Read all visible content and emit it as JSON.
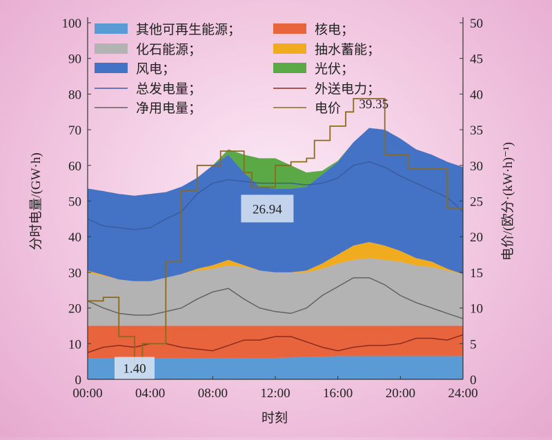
{
  "chart_data": {
    "type": "area",
    "x_label": "时刻",
    "y_left_label": "分时电量/(GW·h)",
    "y_right_label": "电价/(欧分·(kW·h)⁻¹)",
    "x_ticks": [
      "00:00",
      "04:00",
      "08:00",
      "12:00",
      "16:00",
      "20:00",
      "24:00"
    ],
    "y_left_ticks": [
      "0",
      "10",
      "20",
      "30",
      "40",
      "50",
      "60",
      "70",
      "80",
      "90",
      "100"
    ],
    "y_right_ticks": [
      "0",
      "5",
      "10",
      "15",
      "20",
      "25",
      "30",
      "35",
      "40",
      "45",
      "50"
    ],
    "y_left_range": [
      0,
      100
    ],
    "y_right_range": [
      0,
      50
    ],
    "x_range_hours": [
      0,
      24
    ],
    "grid": false,
    "legend_position": "top",
    "stacked_areas": [
      {
        "name": "其他可再生能源；",
        "color": "#5b9bd5",
        "x": [
          0,
          4,
          8,
          12,
          16,
          20,
          24
        ],
        "values": [
          6,
          6,
          6,
          6,
          6.5,
          6.5,
          6.5
        ]
      },
      {
        "name": "核电；",
        "color": "#e8643c",
        "x": [
          0,
          4,
          8,
          12,
          16,
          20,
          24
        ],
        "values": [
          9,
          9,
          9,
          9,
          8.5,
          8.5,
          8.5
        ]
      },
      {
        "name": "化石能源；",
        "color": "#b3b3b3",
        "x": [
          0,
          1,
          2,
          3,
          4,
          5,
          6,
          7,
          8,
          9,
          10,
          11,
          12,
          13,
          14,
          15,
          16,
          17,
          18,
          19,
          20,
          21,
          22,
          23,
          24
        ],
        "values": [
          15,
          14,
          13,
          12.5,
          12.5,
          13.5,
          14.5,
          15.5,
          16,
          17,
          16.5,
          15.5,
          15,
          15,
          15,
          16,
          17.5,
          18.5,
          19,
          18.5,
          18,
          17,
          16.5,
          15.5,
          14.5
        ]
      },
      {
        "name": "抽水蓄能；",
        "color": "#f0ac1e",
        "x": [
          0,
          1,
          2,
          3,
          4,
          5,
          6,
          7,
          8,
          9,
          10,
          11,
          12,
          13,
          14,
          15,
          16,
          17,
          18,
          19,
          20,
          21,
          22,
          23,
          24
        ],
        "values": [
          0.5,
          0.3,
          0,
          0,
          0,
          0,
          0,
          0.5,
          1,
          1.5,
          0.5,
          0,
          0,
          0,
          0.5,
          1.5,
          2.5,
          4,
          4.5,
          4,
          3,
          2,
          1.5,
          0.5,
          0
        ]
      },
      {
        "name": "风电；",
        "color": "#4472c4",
        "x": [
          0,
          1,
          2,
          3,
          4,
          5,
          6,
          7,
          8,
          9,
          10,
          11,
          12,
          13,
          14,
          15,
          16,
          17,
          18,
          19,
          20,
          21,
          22,
          23,
          24
        ],
        "values": [
          23,
          23.5,
          24,
          24,
          24.5,
          24,
          24.5,
          25.5,
          28,
          29.5,
          26,
          23.5,
          23.5,
          23.5,
          23.5,
          25,
          26,
          29,
          32,
          32.5,
          31.5,
          30.5,
          30,
          30,
          30
        ]
      },
      {
        "name": "光伏；",
        "color": "#5aa946",
        "x": [
          0,
          6,
          7,
          8,
          9,
          10,
          11,
          12,
          13,
          14,
          15,
          16,
          17,
          18,
          24
        ],
        "values": [
          0,
          0,
          0,
          0,
          1.5,
          5,
          8,
          8.5,
          6.5,
          4,
          1,
          0.3,
          0,
          0,
          0
        ]
      }
    ],
    "lines": [
      {
        "name": "总发电量；",
        "color": "#3a5c9e",
        "axis": "left",
        "x": [
          0,
          1,
          2,
          3,
          4,
          5,
          6,
          7,
          8,
          9,
          10,
          11,
          12,
          13,
          14,
          15,
          16,
          17,
          18,
          19,
          20,
          21,
          22,
          23,
          24
        ],
        "values": [
          45,
          43,
          42.5,
          42,
          42.5,
          45,
          47,
          52,
          55,
          56,
          55.5,
          55,
          55,
          55,
          54.5,
          55,
          56.5,
          60,
          61,
          59.5,
          57,
          55,
          53,
          51,
          47
        ]
      },
      {
        "name": "外送电力；",
        "color": "#8b2a20",
        "axis": "left",
        "x": [
          0,
          1,
          2,
          3,
          4,
          5,
          6,
          7,
          8,
          9,
          10,
          11,
          12,
          13,
          14,
          15,
          16,
          17,
          18,
          19,
          20,
          21,
          22,
          23,
          24
        ],
        "values": [
          7.5,
          9,
          9.5,
          9,
          10,
          10,
          9,
          8.5,
          8,
          9.5,
          11,
          11,
          12,
          12,
          10.5,
          9,
          8,
          9,
          9.5,
          9.5,
          10,
          11.5,
          11.5,
          11,
          12.5
        ]
      },
      {
        "name": "净用电量；",
        "color": "#616161",
        "axis": "left",
        "x": [
          0,
          1,
          2,
          3,
          4,
          5,
          6,
          7,
          8,
          9,
          10,
          11,
          12,
          13,
          14,
          15,
          16,
          17,
          18,
          19,
          20,
          21,
          22,
          23,
          24
        ],
        "values": [
          22,
          20,
          18.5,
          18,
          18,
          19,
          20,
          22.5,
          24.5,
          25.5,
          22.5,
          20,
          19,
          18.5,
          20,
          23.5,
          26,
          28.5,
          28.5,
          26.5,
          23.5,
          21.5,
          20,
          18.5,
          17
        ]
      },
      {
        "name": "电价",
        "color": "#8c6a1c",
        "axis": "right",
        "step": true,
        "x": [
          0,
          1,
          1.5,
          2,
          2.5,
          3,
          3.5,
          4,
          4.5,
          5,
          5.5,
          6,
          6.5,
          7,
          7.5,
          8,
          8.5,
          9,
          9.5,
          10,
          10.5,
          11,
          11.5,
          12,
          12.5,
          13,
          13.5,
          14,
          14.5,
          15,
          15.5,
          16,
          16.5,
          17,
          17.5,
          18,
          18.5,
          19,
          19.5,
          20,
          20.5,
          21,
          21.5,
          22,
          22.5,
          23,
          23.5,
          24
        ],
        "values": [
          11,
          11.5,
          11.5,
          6,
          6,
          1.4,
          5,
          5,
          5,
          16.5,
          16.5,
          26.5,
          26.5,
          30,
          30,
          30,
          32,
          32,
          32,
          29,
          26.94,
          26.94,
          26.94,
          30,
          30,
          30.5,
          30.5,
          31,
          33.5,
          33.5,
          35.5,
          35.5,
          37.5,
          39.35,
          39.35,
          39.35,
          39.35,
          31.5,
          31.5,
          31.5,
          29.5,
          29.5,
          29.5,
          29.5,
          29.5,
          24,
          24,
          24
        ]
      }
    ],
    "annotations": [
      {
        "text": "26.94",
        "x": 11.4,
        "axis": "right",
        "y": 26.94
      },
      {
        "text": "1.40",
        "x": 3,
        "axis": "right",
        "y": 1.4
      },
      {
        "text": "39.35",
        "x": 18.3,
        "axis": "right",
        "y": 39.35
      }
    ],
    "legend": {
      "columns": [
        [
          "其他可再生能源；",
          "化石能源；",
          "风电；",
          "总发电量；",
          "净用电量；"
        ],
        [
          "核电；",
          "抽水蓄能；",
          "光伏；",
          "外送电力；",
          "电价"
        ]
      ]
    }
  }
}
